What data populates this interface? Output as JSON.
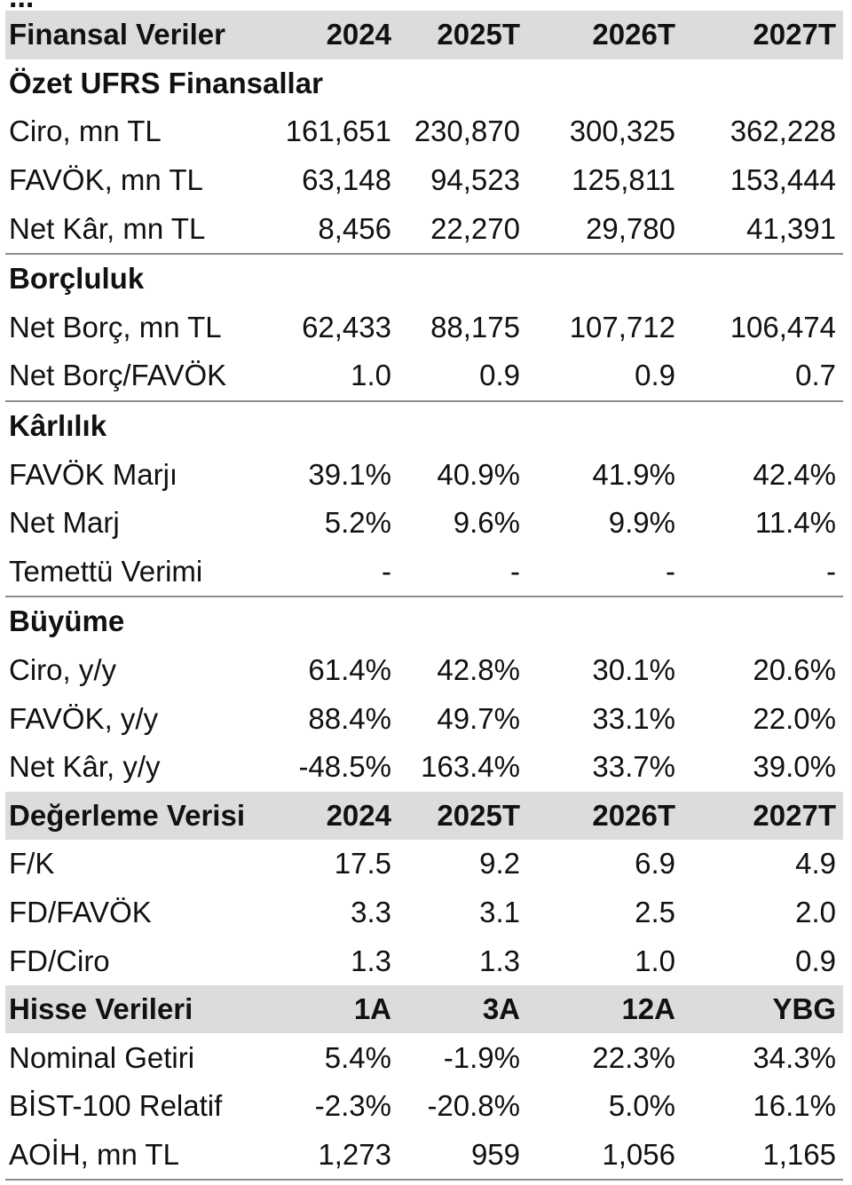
{
  "clipped_header_text": "...",
  "sections": [
    {
      "kind": "header",
      "label": "Finansal Veriler",
      "columns": [
        "2024",
        "2025T",
        "2026T",
        "2027T"
      ]
    },
    {
      "kind": "section",
      "label": "Özet UFRS Finansallar",
      "rows": [
        {
          "label": "Ciro, mn TL",
          "values": [
            "161,651",
            "230,870",
            "300,325",
            "362,228"
          ]
        },
        {
          "label": "FAVÖK, mn TL",
          "values": [
            "63,148",
            "94,523",
            "125,811",
            "153,444"
          ]
        },
        {
          "label": "Net Kâr, mn TL",
          "values": [
            "8,456",
            "22,270",
            "29,780",
            "41,391"
          ]
        }
      ]
    },
    {
      "kind": "section",
      "label": "Borçluluk",
      "rows": [
        {
          "label": "Net Borç, mn TL",
          "values": [
            "62,433",
            "88,175",
            "107,712",
            "106,474"
          ]
        },
        {
          "label": "Net Borç/FAVÖK",
          "values": [
            "1.0",
            "0.9",
            "0.9",
            "0.7"
          ]
        }
      ]
    },
    {
      "kind": "section",
      "label": "Kârlılık",
      "rows": [
        {
          "label": "FAVÖK Marjı",
          "values": [
            "39.1%",
            "40.9%",
            "41.9%",
            "42.4%"
          ]
        },
        {
          "label": "Net Marj",
          "values": [
            "5.2%",
            "9.6%",
            "9.9%",
            "11.4%"
          ]
        },
        {
          "label": "Temettü Verimi",
          "values": [
            "-",
            "-",
            "-",
            "-"
          ]
        }
      ]
    },
    {
      "kind": "section",
      "label": "Büyüme",
      "rows": [
        {
          "label": "Ciro, y/y",
          "values": [
            "61.4%",
            "42.8%",
            "30.1%",
            "20.6%"
          ]
        },
        {
          "label": "FAVÖK, y/y",
          "values": [
            "88.4%",
            "49.7%",
            "33.1%",
            "22.0%"
          ]
        },
        {
          "label": "Net Kâr, y/y",
          "values": [
            "-48.5%",
            "163.4%",
            "33.7%",
            "39.0%"
          ]
        }
      ]
    },
    {
      "kind": "header",
      "label": "Değerleme Verisi",
      "columns": [
        "2024",
        "2025T",
        "2026T",
        "2027T"
      ],
      "rows": [
        {
          "label": "F/K",
          "values": [
            "17.5",
            "9.2",
            "6.9",
            "4.9"
          ]
        },
        {
          "label": "FD/FAVÖK",
          "values": [
            "3.3",
            "3.1",
            "2.5",
            "2.0"
          ]
        },
        {
          "label": "FD/Ciro",
          "values": [
            "1.3",
            "1.3",
            "1.0",
            "0.9"
          ]
        }
      ]
    },
    {
      "kind": "header",
      "label": "Hisse Verileri",
      "columns": [
        "1A",
        "3A",
        "12A",
        "YBG"
      ],
      "rows": [
        {
          "label": "Nominal Getiri",
          "values": [
            "5.4%",
            "-1.9%",
            "22.3%",
            "34.3%"
          ]
        },
        {
          "label": "BİST-100 Relatif",
          "values": [
            "-2.3%",
            "-20.8%",
            "5.0%",
            "16.1%"
          ]
        },
        {
          "label": "AOİH, mn TL",
          "values": [
            "1,273",
            "959",
            "1,056",
            "1,165"
          ]
        }
      ]
    }
  ]
}
